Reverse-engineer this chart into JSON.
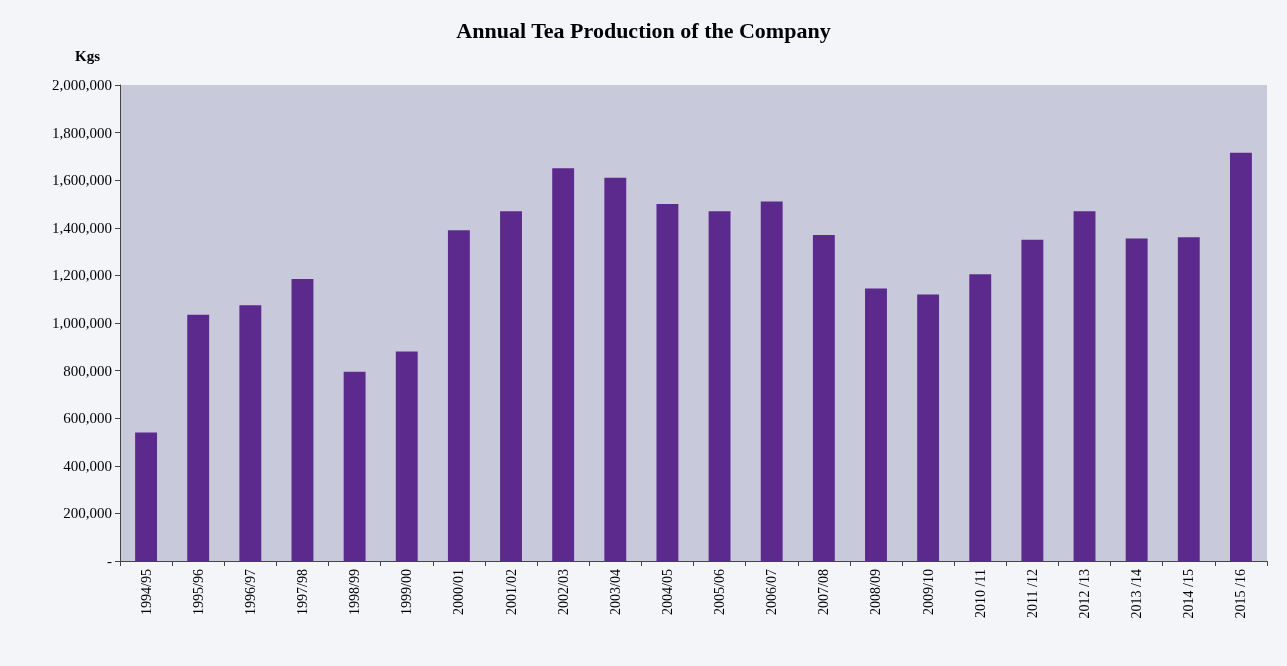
{
  "chart_data": {
    "type": "bar",
    "title": "Annual Tea Production of the Company",
    "ylabel": "Kgs",
    "categories": [
      "1994/95",
      "1995/96",
      "1996/97",
      "1997/98",
      "1998/99",
      "1999/00",
      "2000/01",
      "2001/02",
      "2002/03",
      "2003/04",
      "2004/05",
      "2005/06",
      "2006/07",
      "2007/08",
      "2008/09",
      "2009/10",
      "2010 /11",
      "2011 /12",
      "2012 /13",
      "2013 /14",
      "2014 /15",
      "2015 /16"
    ],
    "values": [
      540000,
      1035000,
      1075000,
      1185000,
      795000,
      880000,
      1390000,
      1470000,
      1650000,
      1610000,
      1500000,
      1470000,
      1510000,
      1370000,
      1145000,
      1120000,
      1205000,
      1350000,
      1470000,
      1355000,
      1360000,
      1715000
    ],
    "color": "#5b2a8c",
    "ylim": [
      0,
      2000000
    ],
    "yticks": [
      {
        "value": 0,
        "label": "-"
      },
      {
        "value": 200000,
        "label": "200,000"
      },
      {
        "value": 400000,
        "label": "400,000"
      },
      {
        "value": 600000,
        "label": "600,000"
      },
      {
        "value": 800000,
        "label": "800,000"
      },
      {
        "value": 1000000,
        "label": "1,000,000"
      },
      {
        "value": 1200000,
        "label": "1,200,000"
      },
      {
        "value": 1400000,
        "label": "1,400,000"
      },
      {
        "value": 1600000,
        "label": "1,600,000"
      },
      {
        "value": 1800000,
        "label": "1,800,000"
      },
      {
        "value": 2000000,
        "label": "2,000,000"
      }
    ],
    "grid": false
  }
}
